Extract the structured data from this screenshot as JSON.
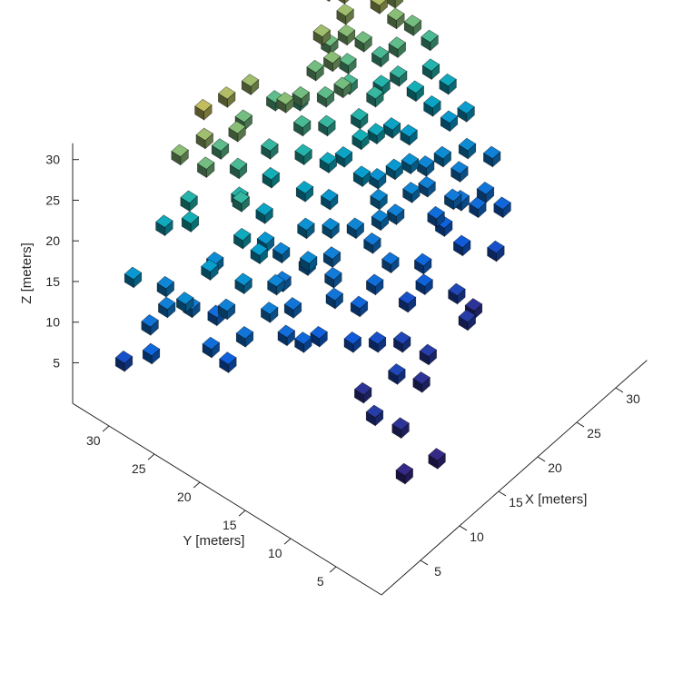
{
  "chart_data": {
    "type": "scatter",
    "subtype": "3d-voxel",
    "title": "",
    "xlabel": "X [meters]",
    "ylabel": "Y [meters]",
    "zlabel": "Z [meters]",
    "xlim": [
      0,
      34
    ],
    "ylim": [
      0,
      34
    ],
    "zlim": [
      0,
      32
    ],
    "x_ticks": [
      "5",
      "10",
      "15",
      "20",
      "25",
      "30"
    ],
    "y_ticks": [
      "5",
      "10",
      "15",
      "20",
      "25",
      "30"
    ],
    "z_ticks": [
      "5",
      "10",
      "15",
      "20",
      "25",
      "30"
    ],
    "colormap": "parula",
    "color_by": "z",
    "grid": false,
    "legend": "none",
    "voxel_size": 1,
    "points": [
      [
        2,
        30,
        5
      ],
      [
        2,
        27,
        8
      ],
      [
        3,
        28,
        10
      ],
      [
        2,
        29,
        16
      ],
      [
        4,
        27,
        12
      ],
      [
        5,
        28,
        13
      ],
      [
        6,
        26,
        11
      ],
      [
        4,
        25,
        14
      ],
      [
        6,
        24,
        17
      ],
      [
        7,
        23,
        12
      ],
      [
        8,
        25,
        9
      ],
      [
        9,
        26,
        14
      ],
      [
        7,
        27,
        20
      ],
      [
        8,
        28,
        21
      ],
      [
        6,
        29,
        19
      ],
      [
        9,
        23,
        19
      ],
      [
        10,
        24,
        22
      ],
      [
        11,
        25,
        21
      ],
      [
        12,
        26,
        23
      ],
      [
        10,
        22,
        17
      ],
      [
        12,
        23,
        16
      ],
      [
        13,
        24,
        18
      ],
      [
        11,
        21,
        13
      ],
      [
        13,
        22,
        11
      ],
      [
        14,
        23,
        13
      ],
      [
        15,
        25,
        20
      ],
      [
        16,
        26,
        22
      ],
      [
        14,
        20,
        14
      ],
      [
        12,
        20,
        10
      ],
      [
        15,
        21,
        12
      ],
      [
        16,
        22,
        15
      ],
      [
        17,
        23,
        18
      ],
      [
        18,
        24,
        21
      ],
      [
        19,
        25,
        23
      ],
      [
        17,
        20,
        12
      ],
      [
        18,
        21,
        14
      ],
      [
        16,
        19,
        11
      ],
      [
        19,
        22,
        16
      ],
      [
        20,
        23,
        19
      ],
      [
        21,
        24,
        22
      ],
      [
        20,
        20,
        13
      ],
      [
        22,
        21,
        17
      ],
      [
        23,
        22,
        20
      ],
      [
        21,
        19,
        11
      ],
      [
        9,
        20,
        12
      ],
      [
        10,
        19,
        9
      ],
      [
        11,
        18,
        8
      ],
      [
        13,
        18,
        7
      ],
      [
        15,
        18,
        10
      ],
      [
        8,
        22,
        15
      ],
      [
        7,
        21,
        10
      ],
      [
        6,
        22,
        7
      ],
      [
        5,
        23,
        9
      ],
      [
        9,
        27,
        25
      ],
      [
        10,
        28,
        27
      ],
      [
        11,
        29,
        29
      ],
      [
        13,
        27,
        26
      ],
      [
        15,
        28,
        25
      ],
      [
        17,
        29,
        27
      ],
      [
        19,
        28,
        24
      ],
      [
        21,
        27,
        23
      ],
      [
        12,
        28,
        24
      ],
      [
        14,
        29,
        28
      ],
      [
        8,
        29,
        26
      ],
      [
        18,
        26,
        26
      ],
      [
        20,
        26,
        25
      ],
      [
        22,
        25,
        24
      ],
      [
        23,
        24,
        25
      ],
      [
        24,
        23,
        21
      ],
      [
        22,
        23,
        18
      ],
      [
        24,
        21,
        15
      ],
      [
        23,
        20,
        14
      ],
      [
        25,
        22,
        19
      ],
      [
        26,
        23,
        22
      ],
      [
        25,
        20,
        16
      ],
      [
        24,
        19,
        12
      ],
      [
        22,
        19,
        13
      ],
      [
        21,
        17,
        10
      ],
      [
        19,
        17,
        9
      ],
      [
        17,
        17,
        8
      ],
      [
        15,
        16,
        6
      ],
      [
        17,
        15,
        5
      ],
      [
        19,
        14,
        4
      ],
      [
        20,
        12,
        3
      ],
      [
        14,
        14,
        2
      ],
      [
        16,
        12,
        4
      ],
      [
        18,
        11,
        2
      ],
      [
        12,
        11,
        3
      ],
      [
        13,
        9,
        2
      ],
      [
        10,
        6,
        1
      ],
      [
        13,
        5,
        1
      ],
      [
        22,
        16,
        5
      ],
      [
        23,
        15,
        7
      ],
      [
        24,
        16,
        8
      ],
      [
        26,
        14,
        4
      ],
      [
        25,
        12,
        3
      ],
      [
        27,
        13,
        2
      ],
      [
        28,
        18,
        9
      ],
      [
        29,
        17,
        11
      ],
      [
        30,
        19,
        14
      ],
      [
        31,
        18,
        12
      ],
      [
        32,
        20,
        16
      ],
      [
        31,
        21,
        18
      ],
      [
        30,
        22,
        20
      ],
      [
        32,
        22,
        21
      ],
      [
        29,
        23,
        22
      ],
      [
        30,
        24,
        24
      ],
      [
        32,
        24,
        25
      ],
      [
        31,
        25,
        26
      ],
      [
        30,
        26,
        28
      ],
      [
        32,
        26,
        27
      ],
      [
        33,
        23,
        23
      ],
      [
        33,
        21,
        19
      ],
      [
        28,
        21,
        17
      ],
      [
        27,
        22,
        18
      ],
      [
        28,
        24,
        21
      ],
      [
        29,
        25,
        23
      ],
      [
        28,
        26,
        25
      ],
      [
        27,
        27,
        26
      ],
      [
        26,
        28,
        25
      ],
      [
        27,
        20,
        15
      ],
      [
        26,
        19,
        13
      ],
      [
        28,
        19,
        12
      ],
      [
        29,
        20,
        13
      ],
      [
        30,
        17,
        10
      ],
      [
        32,
        18,
        14
      ],
      [
        33,
        19,
        17
      ],
      [
        31,
        16,
        9
      ],
      [
        33,
        25,
        28
      ],
      [
        32,
        28,
        30
      ],
      [
        30,
        28,
        29
      ],
      [
        31,
        27,
        30
      ],
      [
        29,
        29,
        28
      ],
      [
        28,
        28,
        27
      ],
      [
        26,
        26,
        24
      ],
      [
        25,
        25,
        23
      ],
      [
        24,
        26,
        26
      ],
      [
        23,
        27,
        25
      ],
      [
        25,
        28,
        27
      ],
      [
        27,
        29,
        30
      ],
      [
        33,
        29,
        33
      ],
      [
        34,
        26,
        32
      ],
      [
        28,
        30,
        33
      ],
      [
        29,
        31,
        36
      ],
      [
        29,
        18,
        7
      ],
      [
        31,
        14,
        5
      ],
      [
        33,
        15,
        8
      ],
      [
        34,
        17,
        12
      ],
      [
        29,
        16,
        6
      ],
      [
        32,
        16,
        10
      ]
    ]
  }
}
